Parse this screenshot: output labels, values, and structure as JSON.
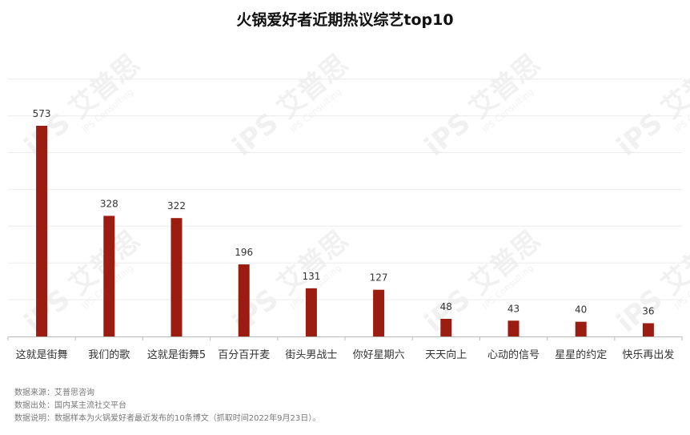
{
  "title": "火锅爱好者近期热议综艺top10",
  "notes": {
    "source": "数据来源：艾普思咨询",
    "origin": "数据出处：国内某主流社交平台",
    "description": "数据说明：数据样本为火锅爱好者最近发布的10条博文（抓取时间2022年9月23日）。"
  },
  "watermark": {
    "brand_cn": "艾普思",
    "brand_en": "IPS Consulting"
  },
  "colors": {
    "bar": "#9b1c10",
    "grid": "#ececec",
    "axis": "#bbbbbb",
    "label": "#333333"
  },
  "chart_data": {
    "type": "bar",
    "title": "火锅爱好者近期热议综艺top10",
    "xlabel": "",
    "ylabel": "",
    "ylim": [
      0,
      700
    ],
    "grid": true,
    "legend": "none",
    "categories": [
      "这就是街舞",
      "我们的歌",
      "这就是街舞5",
      "百分百开麦",
      "街头男战士",
      "你好星期六",
      "天天向上",
      "心动的信号",
      "星星的约定",
      "快乐再出发"
    ],
    "values": [
      573,
      328,
      322,
      196,
      131,
      127,
      48,
      43,
      40,
      36
    ]
  }
}
